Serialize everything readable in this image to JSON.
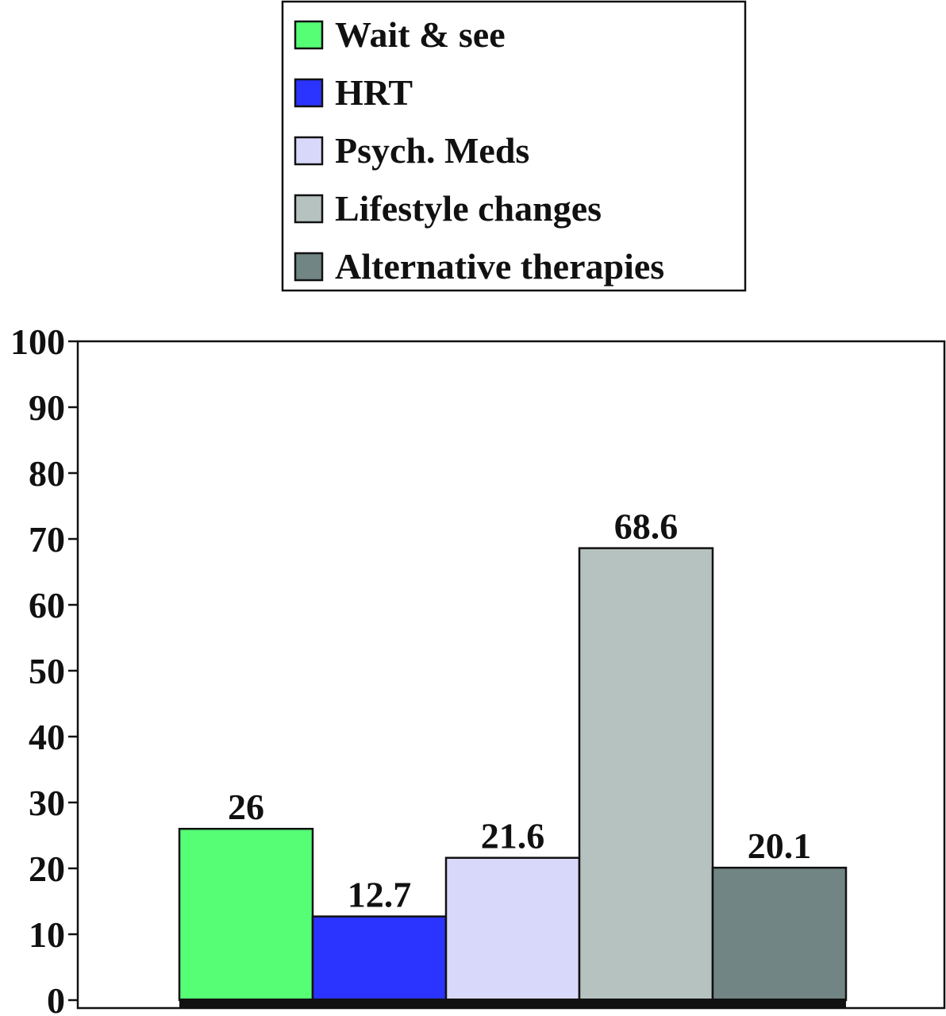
{
  "chart_data": {
    "type": "bar",
    "categories": [
      "Wait & see",
      "HRT",
      "Psych. Meds",
      "Lifestyle changes",
      "Alternative therapies"
    ],
    "values": [
      26,
      12.7,
      21.6,
      68.6,
      20.1
    ],
    "value_labels": [
      "26",
      "12.7",
      "21.6",
      "68.6",
      "20.1"
    ],
    "colors": [
      "#55fe75",
      "#2b34fe",
      "#d8d9fa",
      "#b6c2c0",
      "#718584"
    ],
    "ylim": [
      0,
      100
    ],
    "yticks": [
      0,
      10,
      20,
      30,
      40,
      50,
      60,
      70,
      80,
      90,
      100
    ],
    "ytick_labels": [
      "0",
      "10",
      "20",
      "30",
      "40",
      "50",
      "60",
      "70",
      "80",
      "90",
      "100"
    ],
    "title": "",
    "xlabel": "",
    "ylabel": "",
    "grid": false,
    "legend": {
      "placement": "top-center",
      "entries": [
        "Wait & see",
        "HRT",
        "Psych. Meds",
        "Lifestyle changes",
        "Alternative therapies"
      ]
    }
  }
}
